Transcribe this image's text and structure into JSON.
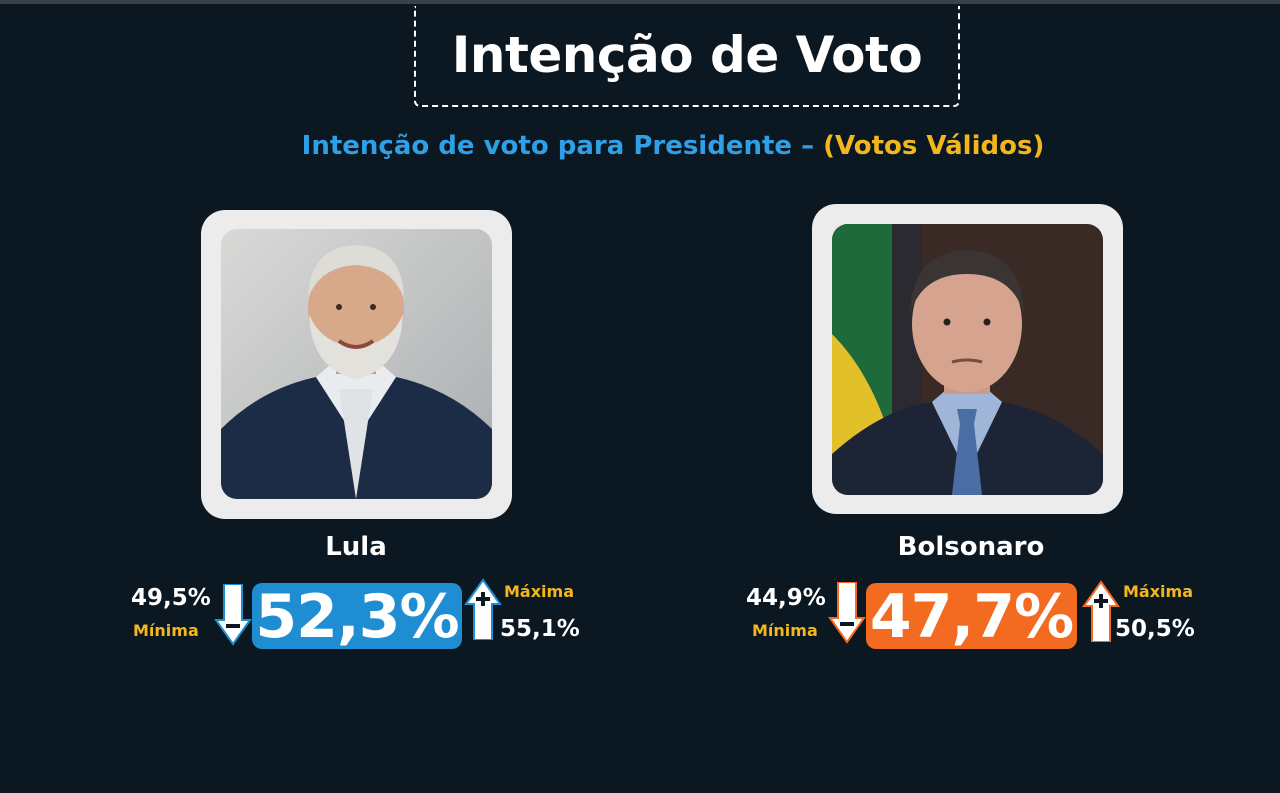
{
  "header": {
    "title": "Intenção de Voto",
    "subtitle_main": "Intenção de voto para Presidente –",
    "subtitle_highlight": "(Votos Válidos)"
  },
  "candidates": [
    {
      "name": "Lula",
      "value": "52,3%",
      "min_value": "49,5%",
      "min_label": "Mínima",
      "max_value": "55,1%",
      "max_label": "Máxima",
      "color": "#1e8dd2"
    },
    {
      "name": "Bolsonaro",
      "value": "47,7%",
      "min_value": "44,9%",
      "min_label": "Mínima",
      "max_value": "50,5%",
      "max_label": "Máxima",
      "color": "#f36a21"
    }
  ],
  "colors": {
    "background": "#0b1822",
    "subtitle_blue": "#2f9fe6",
    "subtitle_yellow": "#f2b71d",
    "frame": "#ececec"
  },
  "icons": [
    "arrow-down-minus-icon",
    "arrow-up-plus-icon"
  ]
}
